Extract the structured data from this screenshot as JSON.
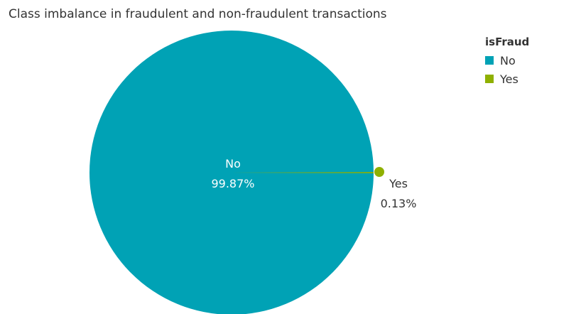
{
  "chart_data": {
    "type": "pie",
    "title": "Class imbalance in fraudulent and non-fraudulent transactions",
    "legend_title": "isFraud",
    "legend_position": "top-right",
    "categories": [
      "No",
      "Yes"
    ],
    "values": [
      99.87,
      0.13
    ],
    "value_labels": [
      "99.87%",
      "0.13%"
    ],
    "colors": [
      "#00A2B5",
      "#8FB000"
    ],
    "slice_label_colors": [
      "#ffffff",
      "#333333"
    ]
  }
}
